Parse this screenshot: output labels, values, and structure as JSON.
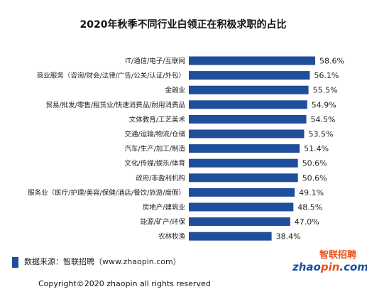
{
  "chart_data": {
    "type": "bar",
    "orientation": "horizontal",
    "title": "2020年秋季不同行业白领正在积极求职的占比",
    "categories": [
      "IT/通信/电子/互联网",
      "商业服务（咨询/财会/法律/广告/公关/认证/外包）",
      "金融业",
      "贸易/批发/零售/租赁业/快速消费品/耐用消费品",
      "文体教育/工艺美术",
      "交通/运输/物流/仓储",
      "汽车/生产/加工/制造",
      "文化/传媒/娱乐/体育",
      "政府/非盈利机构",
      "服务业（医疗/护理/美容/保健/酒店/餐饮/旅游/度假）",
      "房地产/建筑业",
      "能源/矿产/环保",
      "农林牧渔"
    ],
    "values": [
      58.6,
      56.1,
      55.5,
      54.9,
      54.5,
      53.5,
      51.4,
      50.6,
      50.6,
      49.1,
      48.5,
      47.0,
      38.4
    ],
    "value_labels": [
      "58.6%",
      "56.1%",
      "55.5%",
      "54.9%",
      "54.5%",
      "53.5%",
      "51.4%",
      "50.6%",
      "50.6%",
      "49.1%",
      "48.5%",
      "47.0%",
      "38.4%"
    ],
    "xlim": [
      0,
      70
    ],
    "bar_color": "#1f4e9a",
    "grid": false,
    "legend": "none"
  },
  "footer": {
    "source": "数据来源：智联招聘（www.zhaopin.com）",
    "copyright": "Copyright©2020 zhaopin all rights reserved",
    "accent_color": "#1f4e9a"
  },
  "logo": {
    "chinese": "智联招聘",
    "english_main": "zhao",
    "english_accent": "pin",
    "english_tail": ".com",
    "primary_color": "#1f4e9a",
    "accent_color": "#e8541c"
  }
}
